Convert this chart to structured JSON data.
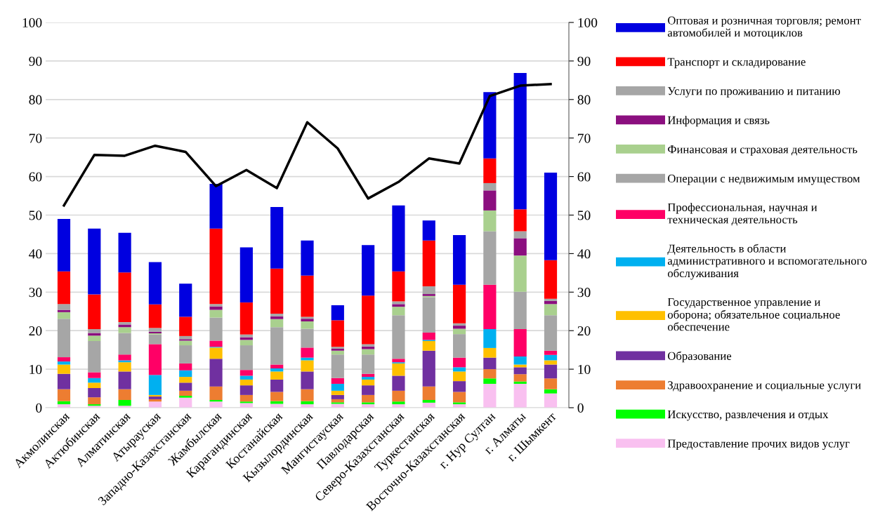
{
  "chart_data": {
    "type": "bar",
    "stacked": true,
    "categories": [
      "Акмолинская",
      "Актюбинская",
      "Алматинская",
      "Атырауская",
      "Западно-Казахстанская",
      "Жамбылская",
      "Карагандинская",
      "Костанайская",
      "Кызылординская",
      "Мангистауская",
      "Павлодарская",
      "Северо-Казахстанская",
      "Туркестанская",
      "Восточно-Казахстанская",
      "г. Нур Султан",
      "г. Алматы",
      "г. Шымкент"
    ],
    "series": [
      {
        "name": "Предоставление прочих видов услуг",
        "color": "#f9c0f0",
        "values": [
          0.9,
          0.5,
          0.5,
          1.6,
          2.6,
          1.6,
          1.2,
          1.0,
          0.9,
          1.0,
          0.9,
          0.9,
          1.3,
          0.9,
          6.2,
          6.2,
          3.7
        ]
      },
      {
        "name": "Искусство, развлечения и отдых",
        "color": "#00ff00",
        "values": [
          0.8,
          0.4,
          1.5,
          null,
          0.5,
          0.4,
          0.4,
          0.7,
          0.8,
          0.4,
          0.5,
          0.7,
          0.7,
          0.5,
          1.4,
          0.6,
          1.1
        ]
      },
      {
        "name": "Здравоохранение и социальные услуги",
        "color": "#ed7d31",
        "values": [
          3.1,
          1.8,
          2.8,
          0.6,
          1.3,
          3.5,
          1.7,
          2.4,
          3.1,
          0.8,
          1.9,
          2.8,
          3.5,
          2.7,
          2.4,
          1.9,
          2.8
        ]
      },
      {
        "name": "Образование",
        "color": "#7030a0",
        "values": [
          4.0,
          2.4,
          4.6,
          0.7,
          2.1,
          7.2,
          2.5,
          3.2,
          4.6,
          1.1,
          2.5,
          3.9,
          9.3,
          2.8,
          3.0,
          1.8,
          3.6
        ]
      },
      {
        "name": "Государственное управление и оборона; обязательное социальное обеспечение",
        "color": "#ffc000",
        "values": [
          2.4,
          1.4,
          2.4,
          0.4,
          1.5,
          2.9,
          1.5,
          2.1,
          2.9,
          1.1,
          1.5,
          3.2,
          2.5,
          2.5,
          2.5,
          0.7,
          1.1
        ]
      },
      {
        "name": "Деятельность в области административного и вспомогательного обслуживания",
        "color": "#00b0f0",
        "values": [
          0.8,
          1.2,
          0.5,
          5.2,
          1.7,
          0.2,
          1.0,
          0.8,
          0.7,
          1.8,
          0.7,
          0.3,
          0.3,
          1.1,
          4.9,
          2.1,
          1.4
        ]
      },
      {
        "name": "Профессиональная, научная и техническая деятельность",
        "color": "#ff0066",
        "values": [
          1.1,
          1.5,
          1.5,
          8.0,
          1.8,
          1.6,
          1.5,
          1.0,
          2.6,
          1.5,
          0.8,
          0.9,
          1.9,
          2.5,
          11.5,
          7.1,
          1.1
        ]
      },
      {
        "name": "Операции с недвижимым имуществом",
        "color": "#a6a6a6",
        "values": [
          10.0,
          8.1,
          5.6,
          2.5,
          4.7,
          6.0,
          6.4,
          9.7,
          4.9,
          6.1,
          5.0,
          11.3,
          9.2,
          6.1,
          13.9,
          9.7,
          9.2
        ]
      },
      {
        "name": "Финансовая и страховая деятельность",
        "color": "#a9d08e",
        "values": [
          1.7,
          1.4,
          1.5,
          0.3,
          1.2,
          2.0,
          1.4,
          2.1,
          1.9,
          1.0,
          1.4,
          2.2,
          0.3,
          1.4,
          5.4,
          9.4,
          2.9
        ]
      },
      {
        "name": "Информация и связь",
        "color": "#8b0f7f",
        "values": [
          0.6,
          0.7,
          0.7,
          0.4,
          0.4,
          0.9,
          0.7,
          0.7,
          0.7,
          0.5,
          0.7,
          0.7,
          0.5,
          0.8,
          5.2,
          4.5,
          0.8
        ]
      },
      {
        "name": "Услуги по проживанию и питанию",
        "color": "#a6a6a6",
        "values": [
          1.5,
          1.0,
          0.6,
          1.0,
          0.8,
          0.6,
          0.7,
          0.7,
          0.5,
          0.5,
          0.6,
          0.7,
          2.0,
          0.6,
          1.9,
          1.8,
          0.6
        ]
      },
      {
        "name": "Транспорт и складирование",
        "color": "#ff0000",
        "values": [
          8.5,
          9.0,
          12.9,
          6.1,
          5.0,
          19.6,
          8.3,
          11.7,
          10.7,
          6.9,
          12.6,
          7.8,
          11.9,
          10.0,
          6.4,
          5.7,
          10.0
        ]
      },
      {
        "name": "Оптовая и розничная торговля; ремонт автомобилей и мотоциклов",
        "color": "#0000e0",
        "values": [
          13.6,
          17.1,
          10.3,
          11.0,
          8.6,
          11.6,
          14.3,
          16.0,
          9.1,
          3.9,
          13.1,
          17.1,
          5.2,
          12.9,
          17.2,
          35.4,
          22.7
        ]
      },
      {
        "type": "line",
        "axis": "y2",
        "color": "#000000",
        "values": [
          52.5,
          65.6,
          65.4,
          68.0,
          66.4,
          57.5,
          61.7,
          57.0,
          74.1,
          67.3,
          54.3,
          58.6,
          64.7,
          63.4,
          80.9,
          83.6,
          84.0
        ]
      }
    ],
    "ylim": [
      0,
      100
    ],
    "yticks": [
      0,
      10,
      20,
      30,
      40,
      50,
      60,
      70,
      80,
      90,
      100
    ],
    "y2lim": [
      0,
      100
    ],
    "y2ticks": [
      0,
      10,
      20,
      30,
      40,
      50,
      60,
      70,
      80,
      90,
      100
    ],
    "grid": "y",
    "legend": "right"
  }
}
